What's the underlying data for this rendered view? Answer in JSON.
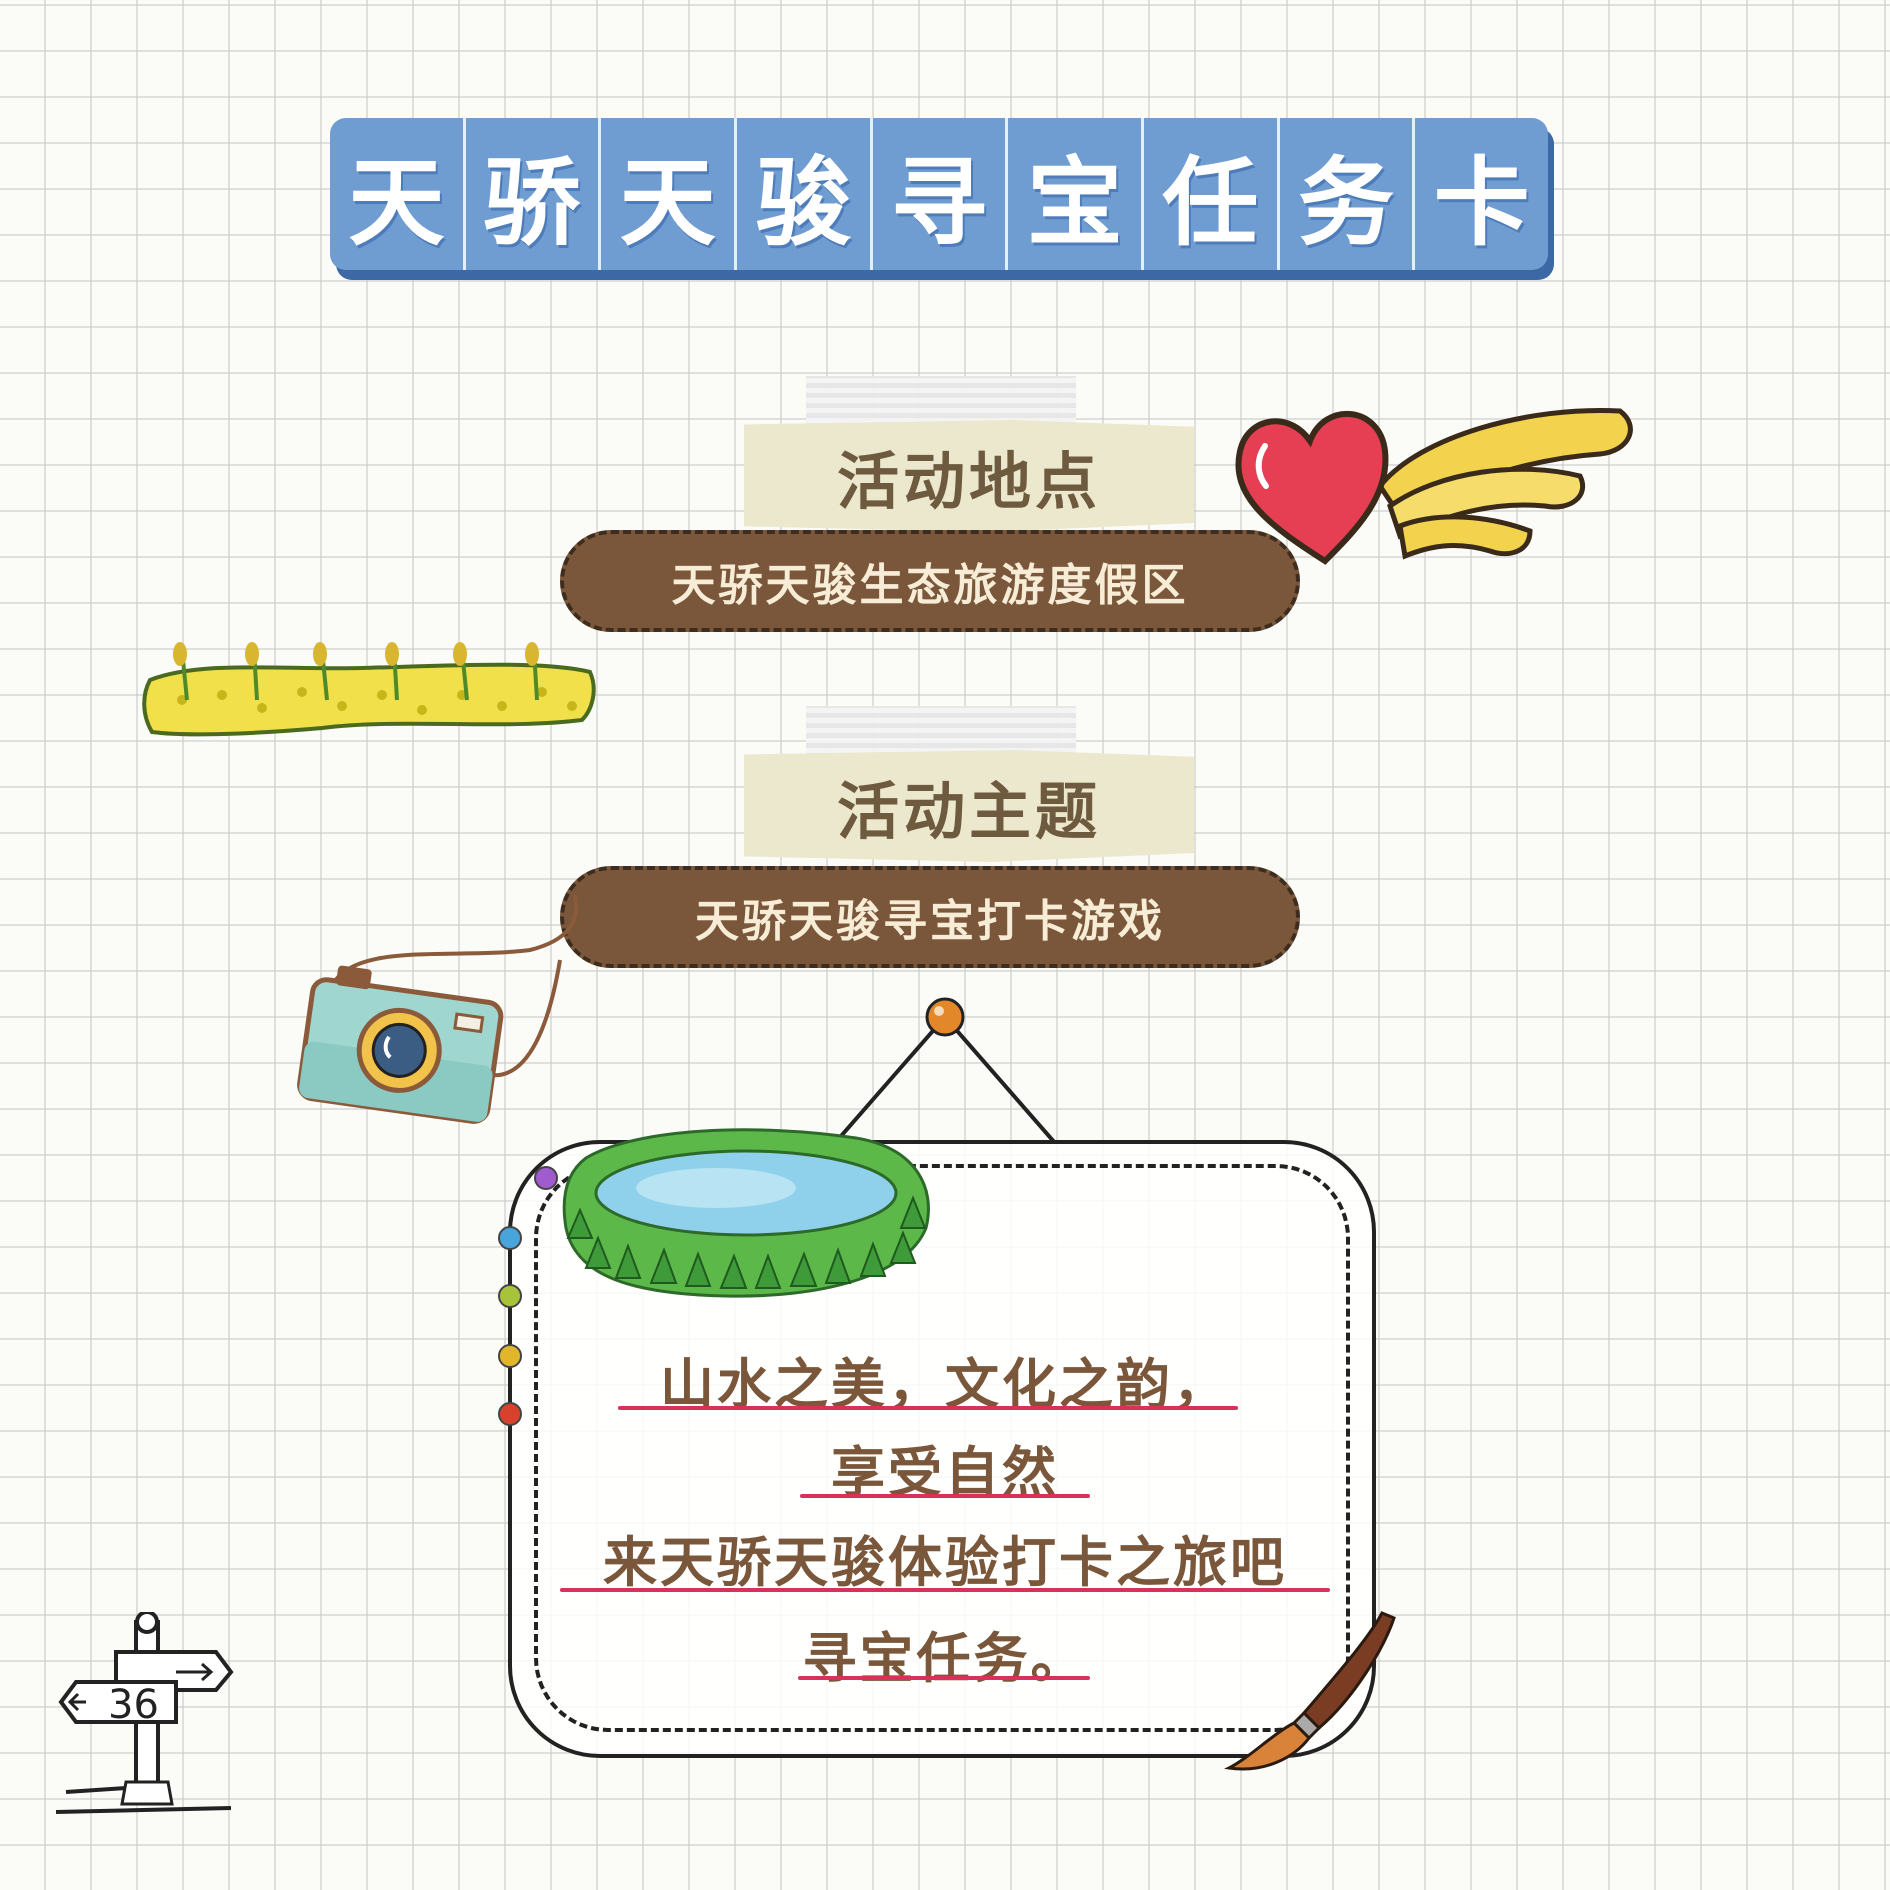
{
  "title": {
    "chars": [
      "天",
      "骄",
      "天",
      "骏",
      "寻",
      "宝",
      "任",
      "务",
      "卡"
    ]
  },
  "sections": [
    {
      "label": "活动地点",
      "value": "天骄天骏生态旅游度假区"
    },
    {
      "label": "活动主题",
      "value": "天骄天骏寻宝打卡游戏"
    }
  ],
  "message": {
    "lines": [
      "山水之美，文化之韵，",
      "享受自然",
      "来天骄天骏体验打卡之旅吧",
      "寻宝任务。"
    ]
  },
  "signpost": {
    "number": "36"
  },
  "colors": {
    "banner": "#6f9dd2",
    "pill": "#7a573a",
    "label_card": "#ebe8cd",
    "underline": "#d8315b"
  }
}
